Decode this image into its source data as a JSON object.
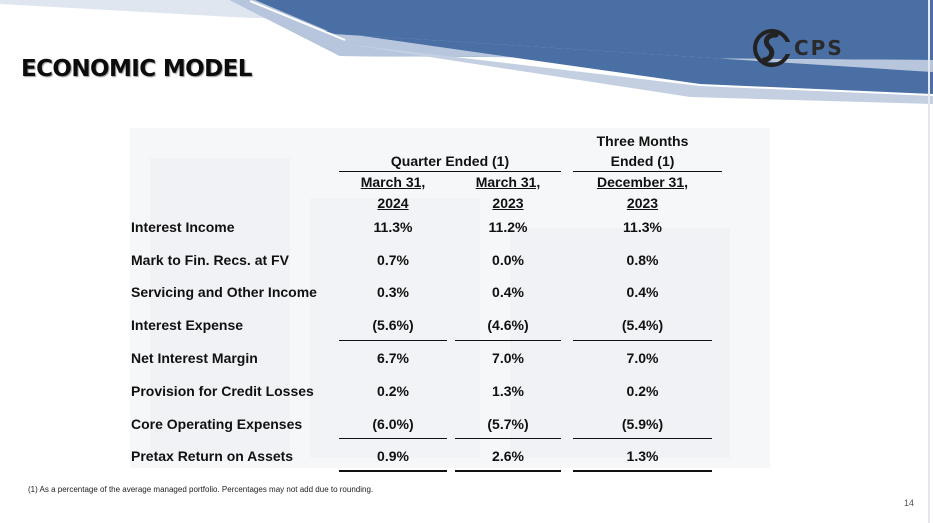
{
  "slide": {
    "title": "ECONOMIC MODEL",
    "logo_text": "CPS",
    "page_number": "14",
    "colors": {
      "banner_blue": "#4a6fa5",
      "banner_light": "#b7c6dd",
      "text": "#111111"
    }
  },
  "table": {
    "group_header": "Quarter Ended (1)",
    "three_months_line1": "Three Months",
    "three_months_line2": "Ended (1)",
    "columns": [
      {
        "date": "March 31,",
        "year": "2024"
      },
      {
        "date": "March 31,",
        "year": "2023"
      },
      {
        "date": "December 31,",
        "year": "2023"
      }
    ],
    "rows": [
      {
        "label": "Interest Income",
        "values": [
          "11.3%",
          "11.2%",
          "11.3%"
        ]
      },
      {
        "label": "Mark to Fin. Recs. at FV",
        "values": [
          "0.7%",
          "0.0%",
          "0.8%"
        ]
      },
      {
        "label": "Servicing and Other Income",
        "values": [
          "0.3%",
          "0.4%",
          "0.4%"
        ]
      },
      {
        "label": "Interest Expense",
        "values": [
          "(5.6%)",
          "(4.6%)",
          "(5.4%)"
        ]
      },
      {
        "label": "Net Interest Margin",
        "values": [
          "6.7%",
          "7.0%",
          "7.0%"
        ]
      },
      {
        "label": "Provision for Credit Losses",
        "values": [
          "0.2%",
          "1.3%",
          "0.2%"
        ]
      },
      {
        "label": "Core Operating Expenses",
        "values": [
          "(6.0%)",
          "(5.7%)",
          "(5.9%)"
        ]
      },
      {
        "label": "Pretax Return on Assets",
        "values": [
          "0.9%",
          "2.6%",
          "1.3%"
        ]
      }
    ]
  },
  "footnote": "(1) As a percentage of the average managed portfolio.  Percentages may not add due to rounding."
}
